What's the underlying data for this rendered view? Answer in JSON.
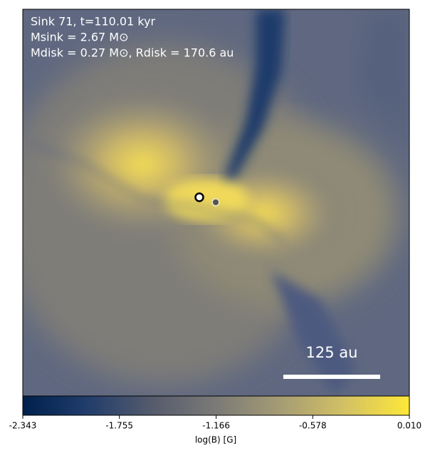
{
  "chart_data": {
    "type": "heatmap",
    "annotations": [
      "Sink 71, t=110.01 kyr",
      "Msink = 2.67 M⊙",
      "Mdisk = 0.27 M⊙, Rdisk = 170.6 au"
    ],
    "scale_bar_label": "125 au",
    "colormap": "cividis",
    "colorbar": {
      "label": "log(B) [G]",
      "clim": [
        -2.343,
        0.01
      ],
      "ticks": [
        -2.343,
        -1.755,
        -1.166,
        -0.578,
        {
          "value": 0.01,
          "label": "0.010"
        }
      ]
    }
  }
}
